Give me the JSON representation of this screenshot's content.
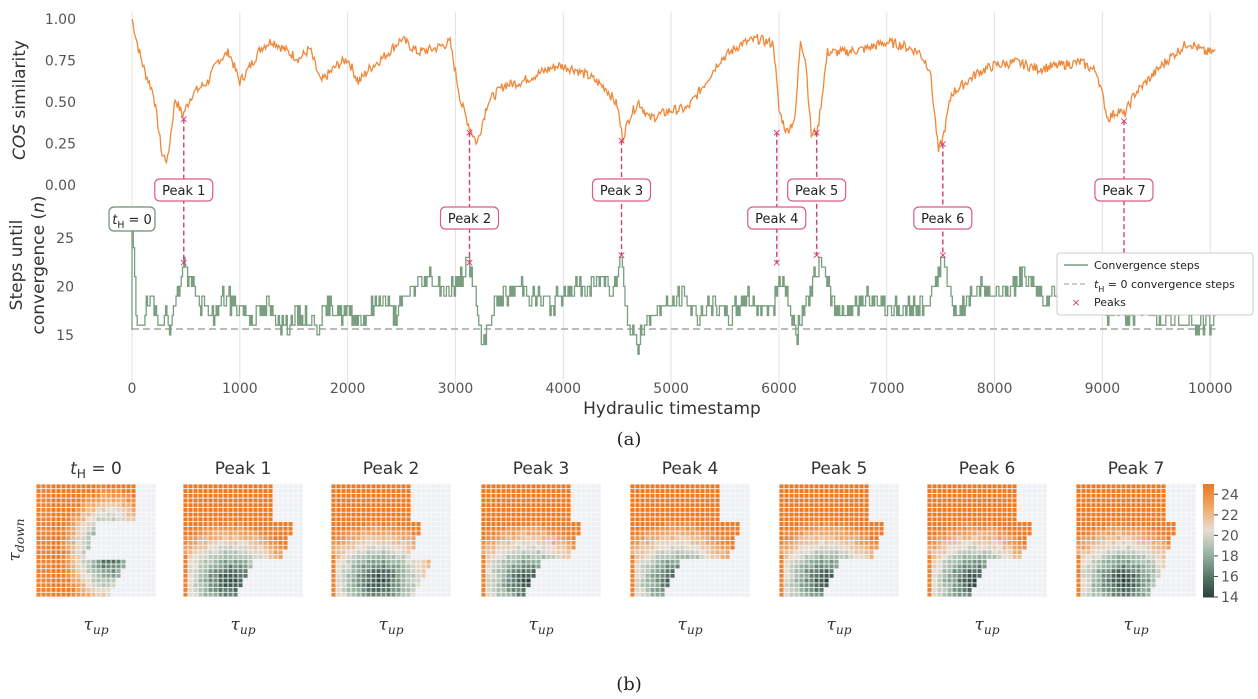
{
  "chart_data": [
    {
      "type": "line",
      "panel": "(a)",
      "ylabel_top": "COS similarity",
      "ylabel_bottom_line1": "Steps until",
      "ylabel_bottom_line2": "convergence (n)",
      "xlabel": "Hydraulic timestamp",
      "x_ticks": [
        "0",
        "1000",
        "2000",
        "3000",
        "4000",
        "5000",
        "6000",
        "7000",
        "8000",
        "9000",
        "10000"
      ],
      "top_y_ticks": [
        "0.00",
        "0.25",
        "0.50",
        "0.75",
        "1.00"
      ],
      "bottom_y_ticks": [
        "15",
        "20",
        "25"
      ],
      "xlim": [
        0,
        10100
      ],
      "top_ylim": [
        0,
        1.0
      ],
      "bottom_ylim": [
        12,
        28
      ],
      "th0_label": "t_H = 0",
      "baseline_steps": 15.6,
      "cos_similarity": {
        "x": [
          0,
          60,
          120,
          200,
          280,
          330,
          400,
          470,
          560,
          700,
          800,
          900,
          1000,
          1100,
          1200,
          1300,
          1450,
          1550,
          1650,
          1750,
          1900,
          2000,
          2100,
          2200,
          2350,
          2500,
          2650,
          2800,
          2950,
          3050,
          3130,
          3200,
          3300,
          3450,
          3600,
          3800,
          3950,
          4100,
          4250,
          4400,
          4500,
          4550,
          4620,
          4700,
          4800,
          5000,
          5150,
          5300,
          5450,
          5650,
          5800,
          5950,
          6000,
          6070,
          6150,
          6200,
          6250,
          6300,
          6360,
          6450,
          6600,
          6800,
          7000,
          7150,
          7300,
          7400,
          7480,
          7520,
          7600,
          7700,
          7850,
          8000,
          8200,
          8400,
          8600,
          8800,
          8950,
          9050,
          9150,
          9200,
          9300,
          9450,
          9550,
          9650,
          9800,
          9950,
          10050
        ],
        "y": [
          1.0,
          0.82,
          0.68,
          0.55,
          0.18,
          0.15,
          0.52,
          0.42,
          0.55,
          0.62,
          0.75,
          0.8,
          0.62,
          0.72,
          0.83,
          0.87,
          0.8,
          0.76,
          0.82,
          0.62,
          0.72,
          0.76,
          0.62,
          0.7,
          0.78,
          0.88,
          0.8,
          0.82,
          0.86,
          0.5,
          0.35,
          0.25,
          0.5,
          0.6,
          0.62,
          0.68,
          0.72,
          0.7,
          0.65,
          0.58,
          0.48,
          0.28,
          0.42,
          0.5,
          0.4,
          0.45,
          0.46,
          0.6,
          0.75,
          0.85,
          0.88,
          0.85,
          0.45,
          0.32,
          0.4,
          0.88,
          0.74,
          0.3,
          0.33,
          0.8,
          0.8,
          0.82,
          0.86,
          0.84,
          0.8,
          0.7,
          0.2,
          0.28,
          0.55,
          0.6,
          0.68,
          0.72,
          0.74,
          0.7,
          0.72,
          0.74,
          0.68,
          0.4,
          0.45,
          0.42,
          0.55,
          0.65,
          0.72,
          0.78,
          0.86,
          0.8,
          0.8
        ]
      },
      "convergence_steps": {
        "x": [
          0,
          40,
          80,
          150,
          250,
          350,
          420,
          480,
          550,
          650,
          750,
          850,
          950,
          1050,
          1150,
          1250,
          1400,
          1550,
          1700,
          1850,
          2000,
          2150,
          2300,
          2450,
          2600,
          2750,
          2900,
          3000,
          3080,
          3130,
          3180,
          3250,
          3350,
          3450,
          3600,
          3750,
          3900,
          4050,
          4200,
          4350,
          4450,
          4540,
          4600,
          4700,
          4800,
          4950,
          5100,
          5250,
          5400,
          5550,
          5700,
          5850,
          5950,
          6000,
          6080,
          6150,
          6250,
          6330,
          6380,
          6450,
          6550,
          6700,
          6850,
          7000,
          7150,
          7300,
          7420,
          7520,
          7620,
          7720,
          7850,
          8000,
          8150,
          8300,
          8450,
          8600,
          8750,
          8850,
          8950,
          9050,
          9150,
          9250,
          9400,
          9550,
          9700,
          9850,
          10000,
          10050
        ],
        "y": [
          27,
          15.6,
          16.5,
          18,
          17,
          16.5,
          19,
          22.5,
          20,
          18,
          17,
          19,
          18,
          17.5,
          17,
          18,
          16,
          17,
          16,
          18,
          17,
          16.5,
          19,
          17,
          20,
          21,
          19.5,
          20,
          21.5,
          22.5,
          19,
          13.5,
          18,
          19,
          20,
          19,
          18,
          20,
          19.5,
          21,
          20,
          23,
          16,
          14,
          17,
          18,
          19,
          17,
          18,
          17,
          19,
          17.5,
          18,
          21,
          19,
          15,
          18,
          21,
          22.5,
          20,
          17,
          18,
          19,
          18,
          17.5,
          18,
          19,
          23,
          17,
          18,
          20,
          19,
          20,
          21,
          18.5,
          20,
          19,
          18,
          22,
          17,
          18,
          17,
          18,
          16.5,
          17,
          16,
          16,
          17
        ]
      },
      "peaks": [
        {
          "label": "Peak 1",
          "x": 480,
          "cos": 0.4,
          "steps": 22.5
        },
        {
          "label": "Peak 2",
          "x": 3130,
          "cos": 0.32,
          "steps": 22.5
        },
        {
          "label": "Peak 3",
          "x": 4540,
          "cos": 0.27,
          "steps": 23.3
        },
        {
          "label": "Peak 4",
          "x": 5980,
          "cos": 0.32,
          "steps": 22.5
        },
        {
          "label": "Peak 5",
          "x": 6350,
          "cos": 0.32,
          "steps": 23.3
        },
        {
          "label": "Peak 6",
          "x": 7520,
          "cos": 0.25,
          "steps": 23.3
        },
        {
          "label": "Peak 7",
          "x": 9200,
          "cos": 0.39,
          "steps": 23.3
        }
      ],
      "legend": {
        "placement": "right",
        "entries": [
          "Convergence steps",
          "t_H = 0 convergence steps",
          "Peaks"
        ]
      },
      "colors": {
        "cos": "#f0883a",
        "steps": "#7a9e80",
        "baseline": "#bbbbbb",
        "peaks": "#d63a76",
        "label_border_peak": "#d95c8c",
        "label_border_th0": "#6c8f73"
      },
      "grid": "vertical"
    },
    {
      "type": "heatmap",
      "panel": "(b)",
      "titles": [
        "t_H = 0",
        "Peak 1",
        "Peak 2",
        "Peak 3",
        "Peak 4",
        "Peak 5",
        "Peak 6",
        "Peak 7"
      ],
      "xlabel": "τ_up",
      "ylabel": "τ_down",
      "colorbar_ticks": [
        "14",
        "16",
        "18",
        "20",
        "22",
        "24"
      ],
      "colorbar_range": [
        14,
        25
      ],
      "colormap": [
        "#29403a",
        "#5c7a6c",
        "#9cb7a4",
        "#e7ddd2",
        "#f0a86a",
        "#ee7a22"
      ]
    }
  ],
  "captions": {
    "a": "(a)",
    "b": "(b)"
  }
}
